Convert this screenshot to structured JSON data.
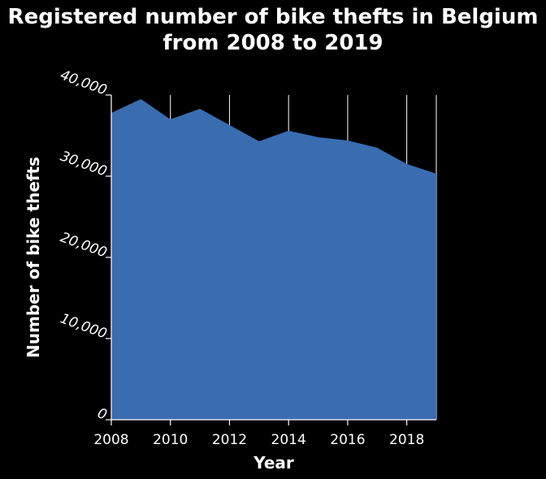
{
  "chart_data": {
    "type": "area",
    "title": "Registered number of bike thefts in Belgium from 2008 to 2019",
    "title_lines": [
      "Registered number of bike thefts in Belgium",
      "from 2008 to 2019"
    ],
    "xlabel": "Year",
    "ylabel": "Number of bike thefts",
    "x": [
      2008,
      2009,
      2010,
      2011,
      2012,
      2013,
      2014,
      2015,
      2016,
      2017,
      2018,
      2019
    ],
    "series": [
      {
        "values": [
          37800,
          39500,
          37000,
          38300,
          36300,
          34300,
          35600,
          34800,
          34400,
          33500,
          31500,
          30300
        ]
      }
    ],
    "xlim": [
      2008,
      2019
    ],
    "ylim": [
      0,
      40000
    ],
    "x_ticks": [
      2008,
      2010,
      2012,
      2014,
      2016,
      2018
    ],
    "x_tick_labels": [
      "2008",
      "2010",
      "2012",
      "2014",
      "2016",
      "2018"
    ],
    "y_ticks": [
      0,
      10000,
      20000,
      30000,
      40000
    ],
    "y_tick_labels": [
      "0",
      "10,000",
      "20,000",
      "30,000",
      "40,000"
    ],
    "grid": "vertical",
    "colors": {
      "background": "#000000",
      "area_fill": "#3a6cb0",
      "text": "#ffffff",
      "grid": "#ffffff"
    }
  }
}
